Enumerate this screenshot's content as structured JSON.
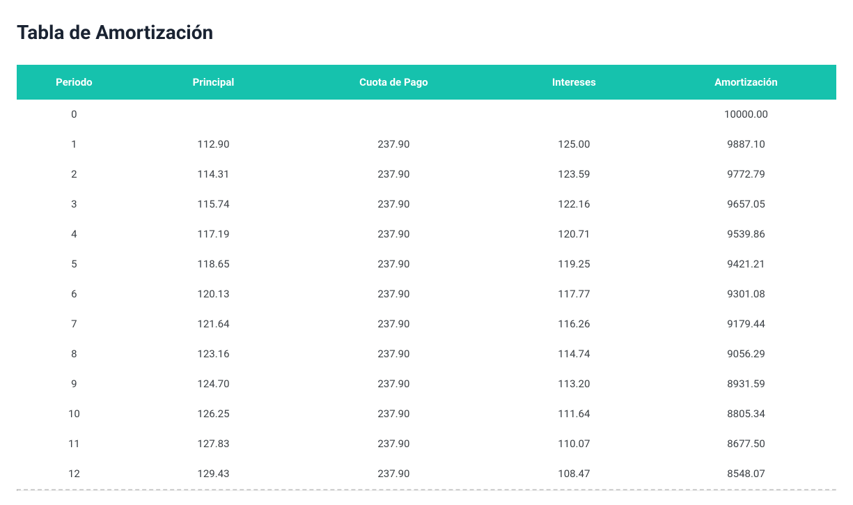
{
  "title": "Tabla de Amortización",
  "table": {
    "header_bg": "#16c2ad",
    "header_fg": "#ffffff",
    "row_fg": "#3a3f44",
    "title_fg": "#1a2332",
    "separator_color": "#cfcfcf",
    "columns": [
      "Periodo",
      "Principal",
      "Cuota de Pago",
      "Intereses",
      "Amortización"
    ],
    "rows": [
      {
        "periodo": "0",
        "principal": "",
        "cuota": "",
        "intereses": "",
        "amortizacion": "10000.00"
      },
      {
        "periodo": "1",
        "principal": "112.90",
        "cuota": "237.90",
        "intereses": "125.00",
        "amortizacion": "9887.10"
      },
      {
        "periodo": "2",
        "principal": "114.31",
        "cuota": "237.90",
        "intereses": "123.59",
        "amortizacion": "9772.79"
      },
      {
        "periodo": "3",
        "principal": "115.74",
        "cuota": "237.90",
        "intereses": "122.16",
        "amortizacion": "9657.05"
      },
      {
        "periodo": "4",
        "principal": "117.19",
        "cuota": "237.90",
        "intereses": "120.71",
        "amortizacion": "9539.86"
      },
      {
        "periodo": "5",
        "principal": "118.65",
        "cuota": "237.90",
        "intereses": "119.25",
        "amortizacion": "9421.21"
      },
      {
        "periodo": "6",
        "principal": "120.13",
        "cuota": "237.90",
        "intereses": "117.77",
        "amortizacion": "9301.08"
      },
      {
        "periodo": "7",
        "principal": "121.64",
        "cuota": "237.90",
        "intereses": "116.26",
        "amortizacion": "9179.44"
      },
      {
        "periodo": "8",
        "principal": "123.16",
        "cuota": "237.90",
        "intereses": "114.74",
        "amortizacion": "9056.29"
      },
      {
        "periodo": "9",
        "principal": "124.70",
        "cuota": "237.90",
        "intereses": "113.20",
        "amortizacion": "8931.59"
      },
      {
        "periodo": "10",
        "principal": "126.25",
        "cuota": "237.90",
        "intereses": "111.64",
        "amortizacion": "8805.34"
      },
      {
        "periodo": "11",
        "principal": "127.83",
        "cuota": "237.90",
        "intereses": "110.07",
        "amortizacion": "8677.50"
      },
      {
        "periodo": "12",
        "principal": "129.43",
        "cuota": "237.90",
        "intereses": "108.47",
        "amortizacion": "8548.07"
      }
    ]
  }
}
